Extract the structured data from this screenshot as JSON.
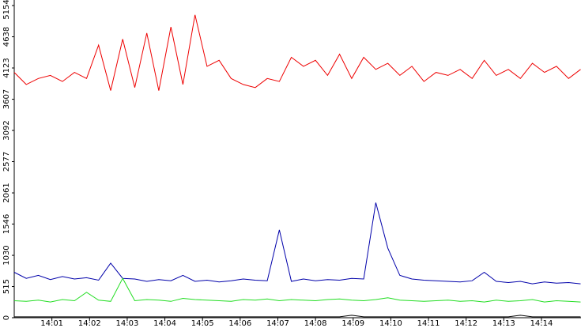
{
  "chart_data": {
    "type": "line",
    "x": [
      0,
      0.32,
      0.64,
      0.96,
      1.28,
      1.6,
      1.92,
      2.24,
      2.56,
      2.88,
      3.2,
      3.52,
      3.84,
      4.16,
      4.48,
      4.8,
      5.12,
      5.44,
      5.76,
      6.08,
      6.4,
      6.72,
      7.04,
      7.36,
      7.68,
      8,
      8.32,
      8.64,
      8.96,
      9.28,
      9.6,
      9.92,
      10.24,
      10.56,
      10.88,
      11.2,
      11.52,
      11.84,
      12.16,
      12.48,
      12.8,
      13.12,
      13.44,
      13.76,
      14.08,
      14.4,
      14.72,
      15.04
    ],
    "series": [
      {
        "color": "#ee0000",
        "values": [
          4050,
          3850,
          3950,
          4000,
          3900,
          4050,
          3950,
          4500,
          3750,
          4600,
          3800,
          4700,
          3750,
          4800,
          3850,
          5000,
          4150,
          4250,
          3950,
          3850,
          3800,
          3950,
          3900,
          4300,
          4150,
          4250,
          4000,
          4350,
          3950,
          4300,
          4100,
          4200,
          4000,
          4150,
          3900,
          4050,
          4000,
          4100,
          3950,
          4250,
          4000,
          4100,
          3950,
          4200,
          4050,
          4150,
          3950,
          4100
        ]
      },
      {
        "color": "#0000aa",
        "values": [
          750,
          650,
          700,
          630,
          680,
          640,
          660,
          620,
          900,
          650,
          640,
          600,
          630,
          610,
          700,
          600,
          620,
          590,
          610,
          640,
          620,
          610,
          1450,
          600,
          640,
          610,
          630,
          620,
          650,
          640,
          1900,
          1150,
          700,
          640,
          620,
          610,
          600,
          590,
          610,
          750,
          600,
          580,
          600,
          560,
          590,
          570,
          580,
          560
        ]
      },
      {
        "color": "#22dd22",
        "values": [
          280,
          270,
          290,
          260,
          300,
          280,
          420,
          290,
          270,
          650,
          280,
          300,
          290,
          270,
          320,
          300,
          290,
          280,
          270,
          300,
          290,
          310,
          280,
          300,
          290,
          280,
          300,
          310,
          290,
          280,
          300,
          330,
          290,
          280,
          270,
          280,
          290,
          270,
          280,
          260,
          290,
          270,
          280,
          300,
          260,
          280,
          270,
          260
        ]
      },
      {
        "color": "#000000",
        "values": [
          15,
          15,
          15,
          15,
          15,
          15,
          15,
          15,
          15,
          15,
          15,
          15,
          15,
          15,
          15,
          15,
          15,
          15,
          15,
          15,
          15,
          15,
          15,
          15,
          15,
          15,
          15,
          15,
          40,
          15,
          15,
          15,
          15,
          15,
          15,
          15,
          15,
          15,
          15,
          15,
          15,
          15,
          40,
          15,
          15,
          15,
          15,
          15
        ]
      }
    ],
    "xlim": [
      0,
      15.05
    ],
    "xticks": [
      {
        "value": 1,
        "label": "14:01"
      },
      {
        "value": 2,
        "label": "14:02"
      },
      {
        "value": 3,
        "label": "14:03"
      },
      {
        "value": 4,
        "label": "14:04"
      },
      {
        "value": 5,
        "label": "14:05"
      },
      {
        "value": 6,
        "label": "14:06"
      },
      {
        "value": 7,
        "label": "14:07"
      },
      {
        "value": 8,
        "label": "14:08"
      },
      {
        "value": 9,
        "label": "14:09"
      },
      {
        "value": 10,
        "label": "14:10"
      },
      {
        "value": 11,
        "label": "14:11"
      },
      {
        "value": 12,
        "label": "14:12"
      },
      {
        "value": 13,
        "label": "14:13"
      },
      {
        "value": 14,
        "label": "14:14"
      }
    ],
    "ylim": [
      0,
      5154
    ],
    "yticks": [
      0,
      515,
      1030,
      1546,
      2061,
      2577,
      3092,
      3607,
      4123,
      4638,
      5154
    ]
  }
}
